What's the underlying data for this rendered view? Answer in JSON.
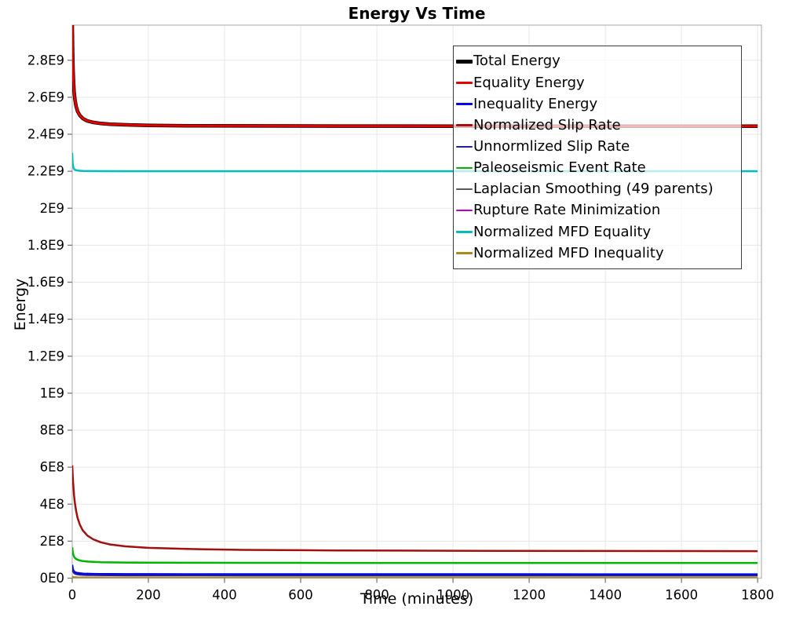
{
  "chart_data": {
    "type": "line",
    "title": "Energy Vs Time",
    "xlabel": "Time (minutes)",
    "ylabel": "Energy",
    "xlim": [
      0,
      1810
    ],
    "ylim": [
      0,
      2990000000.0
    ],
    "grid": true,
    "legend_position": "upper-right-inside",
    "x_ticks": [
      0,
      200,
      400,
      600,
      800,
      1000,
      1200,
      1400,
      1600,
      1800
    ],
    "y_tick_values": [
      0,
      200000000.0,
      400000000.0,
      600000000.0,
      800000000.0,
      1000000000.0,
      1200000000.0,
      1400000000.0,
      1600000000.0,
      1800000000.0,
      2000000000.0,
      2200000000.0,
      2400000000.0,
      2600000000.0,
      2800000000.0
    ],
    "y_tick_labels": [
      "0E0",
      "2E8",
      "4E8",
      "6E8",
      "8E8",
      "1E9",
      "1.2E9",
      "1.4E9",
      "1.6E9",
      "1.8E9",
      "2E9",
      "2.2E9",
      "2.4E9",
      "2.6E9",
      "2.8E9"
    ],
    "colors": {
      "grid": "#e7e7e7",
      "axis_border": "#c4c4c4",
      "tick": "#7a7a7a",
      "legend_border": "#3d3d3d"
    },
    "series": [
      {
        "name": "Total Energy",
        "color": "#000000",
        "line_width": 4.5,
        "x": [
          0,
          1,
          2,
          3,
          5,
          7,
          10,
          14,
          20,
          28,
          40,
          55,
          75,
          100,
          140,
          200,
          300,
          450,
          700,
          1000,
          1400,
          1800
        ],
        "y": [
          2993000000.0,
          2844000000.0,
          2757000000.0,
          2699000000.0,
          2630000000.0,
          2589000000.0,
          2552000000.0,
          2524000000.0,
          2502000000.0,
          2485000000.0,
          2472000000.0,
          2464000000.0,
          2458000000.0,
          2454000000.0,
          2451000000.0,
          2448000000.0,
          2446000000.0,
          2445000000.0,
          2444000000.0,
          2443900000.0,
          2443600000.0,
          2443500000.0
        ]
      },
      {
        "name": "Equality Energy",
        "color": "#e60000",
        "line_width": 3,
        "x": [
          0,
          1,
          2,
          3,
          5,
          7,
          10,
          14,
          20,
          28,
          40,
          55,
          75,
          100,
          140,
          200,
          300,
          450,
          700,
          1000,
          1400,
          1800
        ],
        "y": [
          2993000000.0,
          2844000000.0,
          2757000000.0,
          2699000000.0,
          2630000000.0,
          2589000000.0,
          2552000000.0,
          2524000000.0,
          2502000000.0,
          2485000000.0,
          2472000000.0,
          2464000000.0,
          2458000000.0,
          2454000000.0,
          2451000000.0,
          2448000000.0,
          2446000000.0,
          2445000000.0,
          2444000000.0,
          2443900000.0,
          2443600000.0,
          2443500000.0
        ]
      },
      {
        "name": "Inequality Energy",
        "color": "#0000ee",
        "line_width": 2.5,
        "x": [
          0,
          1,
          2,
          3,
          5,
          7,
          10,
          14,
          20,
          28,
          40,
          55,
          75,
          100,
          140,
          200,
          300,
          450,
          700,
          1000,
          1400,
          1800
        ],
        "y": [
          72000000.0,
          56200000.0,
          47700000.0,
          42400000.0,
          36200000.0,
          33000000.0,
          30200000.0,
          28100000.0,
          26200000.0,
          24800000.0,
          23700000.0,
          23000000.0,
          22500000.0,
          22100000.0,
          21800000.0,
          21500000.0,
          21300000.0,
          21200000.0,
          21100000.0,
          21100000.0,
          21000000.0,
          21000000.0
        ]
      },
      {
        "name": "Normalized Slip Rate",
        "color": "#a01010",
        "line_width": 2.5,
        "x": [
          0,
          1,
          2,
          3,
          5,
          7,
          10,
          14,
          20,
          28,
          40,
          55,
          75,
          100,
          140,
          200,
          300,
          450,
          700,
          1000,
          1400,
          1800
        ],
        "y": [
          610000000.0,
          563000000.0,
          525000000.0,
          494000000.0,
          444000000.0,
          406000000.0,
          365000000.0,
          326000000.0,
          289000000.0,
          257000000.0,
          230000000.0,
          210000000.0,
          194000000.0,
          182000000.0,
          172000000.0,
          164000000.0,
          158000000.0,
          153000000.0,
          150000000.0,
          148000000.0,
          147000000.0,
          146000000.0
        ]
      },
      {
        "name": "Unnormlized Slip Rate",
        "color": "#202090",
        "line_width": 2,
        "x": [
          0,
          1,
          2,
          3,
          5,
          7,
          10,
          14,
          20,
          28,
          40,
          55,
          75,
          100,
          140,
          200,
          300,
          450,
          700,
          1000,
          1400,
          1800
        ],
        "y": [
          55000000.0,
          42300000.0,
          35500000.0,
          31200000.0,
          26300000.0,
          23700000.0,
          21400000.0,
          19700000.0,
          18100000.0,
          17100000.0,
          16200000.0,
          15600000.0,
          15200000.0,
          14900000.0,
          14600000.0,
          14400000.0,
          14300000.0,
          14200000.0,
          14100000.0,
          14100000.0,
          14000000.0,
          14000000.0
        ]
      },
      {
        "name": "Paleoseismic Event Rate",
        "color": "#00b400",
        "line_width": 2.5,
        "x": [
          0,
          1,
          2,
          3,
          5,
          7,
          10,
          14,
          20,
          28,
          40,
          55,
          75,
          100,
          140,
          200,
          300,
          450,
          700,
          1000,
          1400,
          1800
        ],
        "y": [
          167000000.0,
          146500000.0,
          133700000.0,
          125600000.0,
          115800000.0,
          109700000.0,
          104000000.0,
          99500000.0,
          95300000.0,
          92200000.0,
          89500000.0,
          87700000.0,
          86300000.0,
          85300000.0,
          84400000.0,
          83800000.0,
          83200000.0,
          82800000.0,
          82500000.0,
          82400000.0,
          82300000.0,
          82200000.0
        ]
      },
      {
        "name": "Laplacian Smoothing (49 parents)",
        "color": "#595959",
        "line_width": 2,
        "x": [
          0,
          2,
          5,
          10,
          20,
          50,
          100,
          400,
          1800
        ],
        "y": [
          9000000.0,
          6500000.0,
          5200000.0,
          4500000.0,
          4000000.0,
          3700000.0,
          3600000.0,
          3500000.0,
          3500000.0
        ]
      },
      {
        "name": "Rupture Rate Minimization",
        "color": "#c000c0",
        "line_width": 2,
        "x": [
          0,
          2,
          5,
          10,
          20,
          50,
          100,
          400,
          1800
        ],
        "y": [
          5000000.0,
          3500000.0,
          3000000.0,
          2700000.0,
          2500000.0,
          2400000.0,
          2350000.0,
          2300000.0,
          2300000.0
        ]
      },
      {
        "name": "Normalized MFD Equality",
        "color": "#00bdbd",
        "line_width": 2.5,
        "x": [
          0,
          1,
          2,
          3,
          5,
          7,
          10,
          14,
          20,
          28,
          40,
          75,
          140,
          300,
          700,
          1800
        ],
        "y": [
          2300000000.0,
          2245500000.0,
          2228000000.0,
          2219600000.0,
          2211800000.0,
          2208300000.0,
          2205700000.0,
          2203900000.0,
          2202500000.0,
          2201600000.0,
          2201000000.0,
          2200500000.0,
          2200200000.0,
          2200100000.0,
          2200000000.0,
          2200000000.0
        ]
      },
      {
        "name": "Normalized MFD Inequality",
        "color": "#b08818",
        "line_width": 2.5,
        "x": [
          0,
          2,
          5,
          10,
          20,
          50,
          100,
          400,
          1800
        ],
        "y": [
          7000000.0,
          4000000.0,
          3000000.0,
          2200000.0,
          1800000.0,
          1500000.0,
          1400000.0,
          1300000.0,
          1300000.0
        ]
      }
    ]
  }
}
